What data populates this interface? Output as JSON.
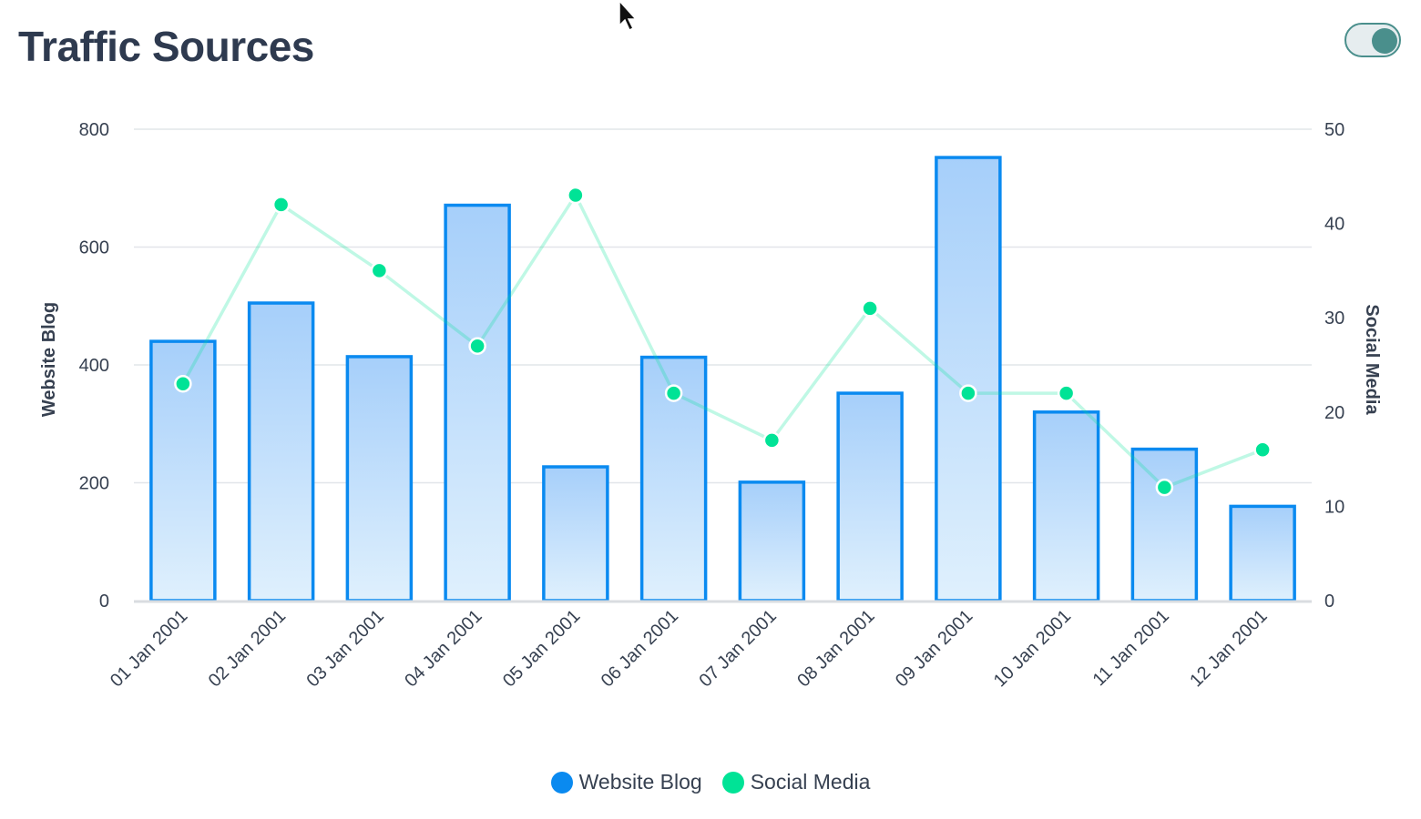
{
  "header": {
    "title": "Traffic Sources"
  },
  "toggle": {
    "state": "on"
  },
  "colors": {
    "bar_stroke": "#0a8af0",
    "bar_fill_top": "#a6cffa",
    "bar_fill_bottom": "#dff0fd",
    "line": "#00e396",
    "title": "#2e3a4f",
    "toggle": "#4a8f8c"
  },
  "chart_data": {
    "type": "bar+line",
    "categories": [
      "01 Jan 2001",
      "02 Jan 2001",
      "03 Jan 2001",
      "04 Jan 2001",
      "05 Jan 2001",
      "06 Jan 2001",
      "07 Jan 2001",
      "08 Jan 2001",
      "09 Jan 2001",
      "10 Jan 2001",
      "11 Jan 2001",
      "12 Jan 2001"
    ],
    "series": [
      {
        "name": "Website Blog",
        "type": "bar",
        "axis": "left",
        "values": [
          440,
          505,
          414,
          671,
          227,
          413,
          201,
          352,
          752,
          320,
          257,
          160
        ]
      },
      {
        "name": "Social Media",
        "type": "line",
        "axis": "right",
        "values": [
          23,
          42,
          35,
          27,
          43,
          22,
          17,
          31,
          22,
          22,
          12,
          16
        ]
      }
    ],
    "y_left": {
      "label": "Website Blog",
      "ylim": [
        0,
        800
      ],
      "ticks": [
        "0",
        "200",
        "400",
        "600",
        "800"
      ]
    },
    "y_right": {
      "label": "Social Media",
      "ylim": [
        0,
        50
      ],
      "ticks": [
        "0",
        "10",
        "20",
        "30",
        "40",
        "50"
      ]
    },
    "grid": true,
    "legend": {
      "position": "bottom",
      "items": [
        {
          "label": "Website Blog",
          "color": "#0a8af0"
        },
        {
          "label": "Social Media",
          "color": "#00e396"
        }
      ]
    }
  }
}
